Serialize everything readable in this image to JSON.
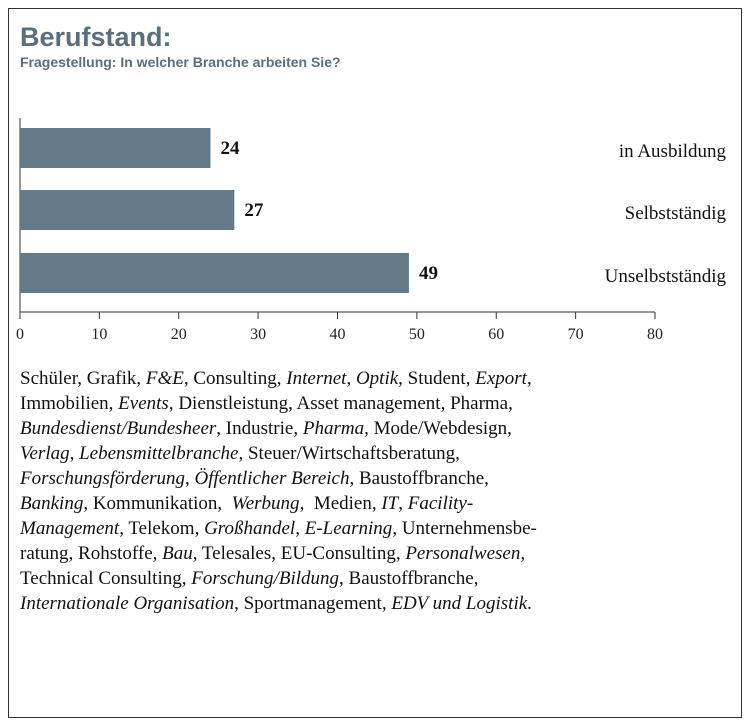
{
  "chart_data": {
    "type": "bar",
    "orientation": "horizontal",
    "title": "Berufstand:",
    "subtitle": "Fragestellung: In welcher Branche arbeiten Sie?",
    "categories": [
      "in Ausbildung",
      "Selbstständig",
      "Unselbstständig"
    ],
    "values": [
      24,
      27,
      49
    ],
    "color": "#647a89",
    "xlim": [
      0,
      80
    ],
    "xticks": [
      0,
      10,
      20,
      30,
      40,
      50,
      60,
      70,
      80
    ]
  },
  "text": {
    "lines": [
      [
        {
          "text": "Schüler, Grafik, ",
          "italic": false
        },
        {
          "text": "F&E",
          "italic": true
        },
        {
          "text": ", Consulting, ",
          "italic": false
        },
        {
          "text": "Internet",
          "italic": true
        },
        {
          "text": ", ",
          "italic": false
        },
        {
          "text": "Optik",
          "italic": true
        },
        {
          "text": ", Student, ",
          "italic": false
        },
        {
          "text": "Export",
          "italic": true
        },
        {
          "text": ",",
          "italic": false
        }
      ],
      [
        {
          "text": "Immobilien, ",
          "italic": false
        },
        {
          "text": "Events",
          "italic": true
        },
        {
          "text": ", Dienstleistung, Asset management, Pharma,",
          "italic": false
        }
      ],
      [
        {
          "text": "Bundesdienst/Bundesheer",
          "italic": true
        },
        {
          "text": ", Industrie, ",
          "italic": false
        },
        {
          "text": "Pharma",
          "italic": true
        },
        {
          "text": ", Mode/Webdesign,",
          "italic": false
        }
      ],
      [
        {
          "text": "Verlag",
          "italic": true
        },
        {
          "text": ", ",
          "italic": false
        },
        {
          "text": "Lebensmittelbranche",
          "italic": true
        },
        {
          "text": ", Steuer/Wirtschaftsberatung,",
          "italic": false
        }
      ],
      [
        {
          "text": "Forschungsförderung",
          "italic": true
        },
        {
          "text": ", ",
          "italic": false
        },
        {
          "text": "Öffentlicher Bereich",
          "italic": true
        },
        {
          "text": ", Baustoffbranche,",
          "italic": false
        }
      ],
      [
        {
          "text": "Banking",
          "italic": true
        },
        {
          "text": ", Kommunikation,  ",
          "italic": false
        },
        {
          "text": "Werbung",
          "italic": true
        },
        {
          "text": ",  Medien, ",
          "italic": false
        },
        {
          "text": "IT",
          "italic": true
        },
        {
          "text": ", ",
          "italic": false
        },
        {
          "text": "Facility-",
          "italic": true
        }
      ],
      [
        {
          "text": "Management",
          "italic": true
        },
        {
          "text": ", Telekom, ",
          "italic": false
        },
        {
          "text": "Großhandel",
          "italic": true
        },
        {
          "text": ", ",
          "italic": false
        },
        {
          "text": "E-Learning",
          "italic": true
        },
        {
          "text": ", Unternehmensbe-",
          "italic": false
        }
      ],
      [
        {
          "text": "ratung, Rohstoffe, ",
          "italic": false
        },
        {
          "text": "Bau",
          "italic": true
        },
        {
          "text": ", Telesales, EU-Consulting, ",
          "italic": false
        },
        {
          "text": "Personalwesen",
          "italic": true
        },
        {
          "text": ",",
          "italic": false
        }
      ],
      [
        {
          "text": "Technical Consulting, ",
          "italic": false
        },
        {
          "text": "Forschung/Bildung",
          "italic": true
        },
        {
          "text": ", Baustoffbranche,",
          "italic": false
        }
      ],
      [
        {
          "text": "Internationale Organisation",
          "italic": true
        },
        {
          "text": ", Sportmanagement, ",
          "italic": false
        },
        {
          "text": "EDV und Logistik",
          "italic": true
        },
        {
          "text": ".",
          "italic": false
        }
      ]
    ]
  }
}
